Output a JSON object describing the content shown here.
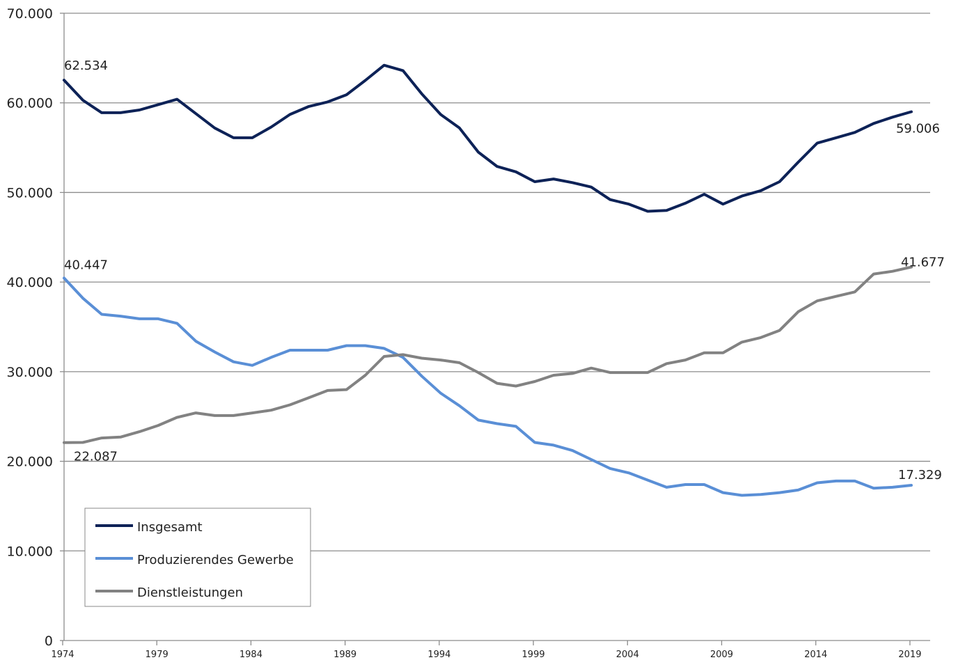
{
  "chart_data": {
    "type": "line",
    "title": "",
    "xlabel": "",
    "ylabel": "",
    "x": [
      1974,
      1975,
      1976,
      1977,
      1978,
      1979,
      1980,
      1981,
      1982,
      1983,
      1984,
      1985,
      1986,
      1987,
      1988,
      1989,
      1990,
      1991,
      1992,
      1993,
      1994,
      1995,
      1996,
      1997,
      1998,
      1999,
      2000,
      2001,
      2002,
      2003,
      2004,
      2005,
      2006,
      2007,
      2008,
      2009,
      2010,
      2011,
      2012,
      2013,
      2014,
      2015,
      2016,
      2017,
      2018,
      2019
    ],
    "xlim": [
      1974,
      2020
    ],
    "ylim": [
      0,
      70000
    ],
    "grid": true,
    "legend_position": "bottom-left",
    "x_tick_values": [
      1974,
      1979,
      1984,
      1989,
      1994,
      1999,
      2004,
      2009,
      2014,
      2019
    ],
    "x_tick_labels": [
      "1974",
      "1979",
      "1984",
      "1989",
      "1994",
      "1999",
      "2004",
      "2009",
      "2014",
      "2019"
    ],
    "y_tick_values": [
      0,
      10000,
      20000,
      30000,
      40000,
      50000,
      60000,
      70000
    ],
    "y_tick_labels": [
      "0",
      "10.000",
      "20.000",
      "30.000",
      "40.000",
      "50.000",
      "60.000",
      "70.000"
    ],
    "series": [
      {
        "name": "Insgesamt",
        "color": "#0d2257",
        "values": [
          62534,
          60300,
          58900,
          58900,
          59200,
          59800,
          60400,
          58800,
          57200,
          56100,
          56100,
          57300,
          58700,
          59600,
          60100,
          60900,
          62500,
          64200,
          63600,
          61000,
          58700,
          57200,
          54500,
          52900,
          52300,
          51200,
          51500,
          51100,
          50600,
          49200,
          48700,
          47900,
          48000,
          48800,
          49800,
          48700,
          49600,
          50200,
          51200,
          53400,
          55500,
          56100,
          56700,
          57700,
          58400,
          59006
        ]
      },
      {
        "name": "Produzierendes Gewerbe",
        "color": "#5a8fd6",
        "values": [
          40447,
          38200,
          36400,
          36200,
          35900,
          35900,
          35400,
          33400,
          32200,
          31100,
          30700,
          31600,
          32400,
          32400,
          32400,
          32900,
          32900,
          32600,
          31600,
          29500,
          27600,
          26200,
          24600,
          24200,
          23900,
          22100,
          21800,
          21200,
          20200,
          19200,
          18700,
          17900,
          17100,
          17400,
          17400,
          16500,
          16200,
          16300,
          16500,
          16800,
          17600,
          17800,
          17800,
          17000,
          17100,
          17329
        ]
      },
      {
        "name": "Dienstleistungen",
        "color": "#828282",
        "values": [
          22087,
          22100,
          22600,
          22700,
          23300,
          24000,
          24900,
          25400,
          25100,
          25100,
          25400,
          25700,
          26300,
          27100,
          27900,
          28000,
          29600,
          31700,
          31900,
          31500,
          31300,
          31000,
          29900,
          28700,
          28400,
          28900,
          29600,
          29800,
          30400,
          29900,
          29900,
          29900,
          30900,
          31300,
          32100,
          32100,
          33300,
          33800,
          34600,
          36700,
          37900,
          38400,
          38900,
          40900,
          41200,
          41677
        ]
      }
    ],
    "annotations": [
      {
        "text": "62.534",
        "series": "Insgesamt",
        "x": 1974
      },
      {
        "text": "59.006",
        "series": "Insgesamt",
        "x": 2019
      },
      {
        "text": "40.447",
        "series": "Produzierendes Gewerbe",
        "x": 1974
      },
      {
        "text": "17.329",
        "series": "Produzierendes Gewerbe",
        "x": 2019
      },
      {
        "text": "22.087",
        "series": "Dienstleistungen",
        "x": 1974
      },
      {
        "text": "41.677",
        "series": "Dienstleistungen",
        "x": 2019
      }
    ]
  }
}
